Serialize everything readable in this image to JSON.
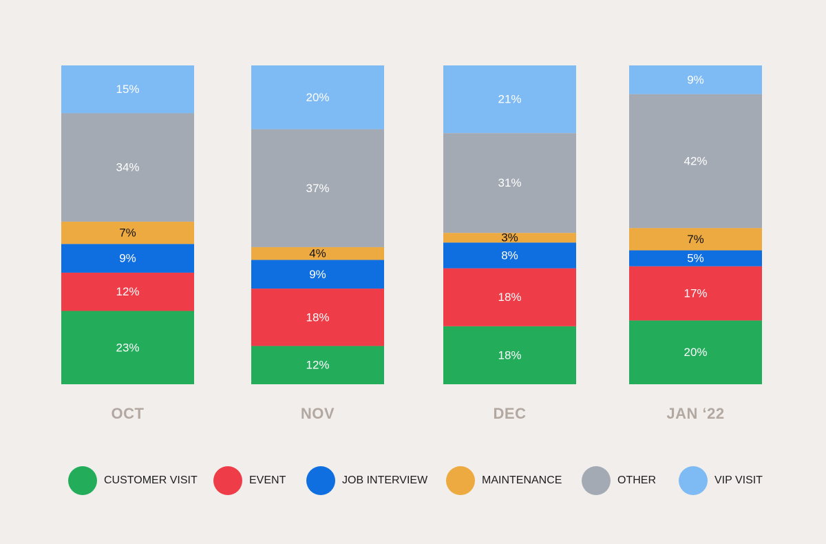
{
  "chart_data": {
    "type": "bar",
    "stacked": true,
    "title": "",
    "xlabel": "",
    "ylabel": "",
    "categories": [
      "OCT",
      "NOV",
      "DEC",
      "JAN ‘22"
    ],
    "series": [
      {
        "name": "CUSTOMER VISIT",
        "color": "#23ad5b",
        "label_color": "#ffffff",
        "values": [
          23,
          12,
          18,
          20
        ]
      },
      {
        "name": "EVENT",
        "color": "#ee3d48",
        "label_color": "#ffffff",
        "values": [
          12,
          18,
          18,
          17
        ]
      },
      {
        "name": "JOB INTERVIEW",
        "color": "#0f6ee0",
        "label_color": "#ffffff",
        "values": [
          9,
          9,
          8,
          5
        ]
      },
      {
        "name": "MAINTENANCE",
        "color": "#edaa40",
        "label_color": "#111111",
        "values": [
          7,
          4,
          3,
          7
        ]
      },
      {
        "name": "OTHER",
        "color": "#a3aab3",
        "label_color": "#ffffff",
        "values": [
          34,
          37,
          31,
          42
        ]
      },
      {
        "name": "VIP VISIT",
        "color": "#7ebaf3",
        "label_color": "#ffffff",
        "values": [
          15,
          20,
          21,
          9
        ]
      }
    ],
    "value_suffix": "%",
    "legend_position": "bottom",
    "grid": false
  }
}
